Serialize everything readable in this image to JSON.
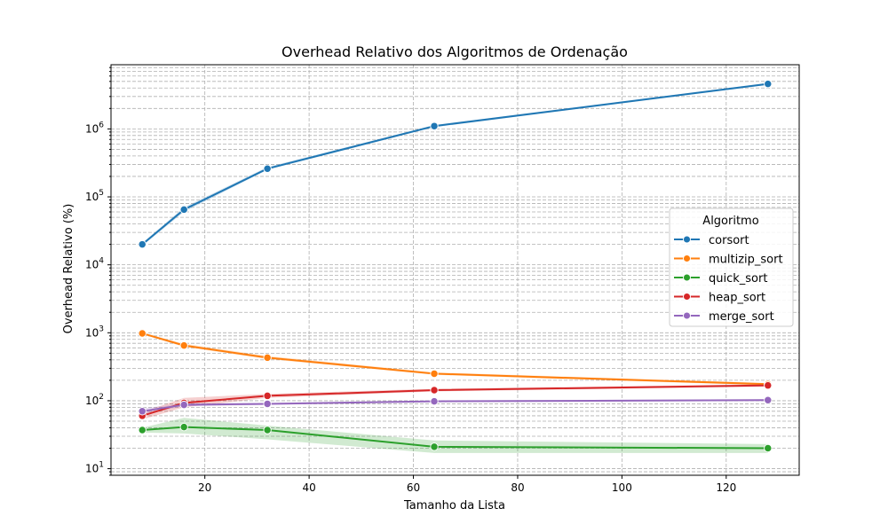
{
  "chart_data": {
    "type": "line",
    "title": "Overhead Relativo dos Algoritmos de Ordenação",
    "xlabel": "Tamanho da Lista",
    "ylabel": "Overhead Relativo (%)",
    "x": [
      8,
      16,
      32,
      64,
      128
    ],
    "xlim": [
      2,
      134
    ],
    "ylim": [
      8,
      8800000
    ],
    "yscale": "log",
    "grid": true,
    "x_ticks": [
      20,
      40,
      60,
      80,
      100,
      120
    ],
    "y_ticks": [
      {
        "base": "10",
        "exp": "1",
        "value": 10
      },
      {
        "base": "10",
        "exp": "2",
        "value": 100
      },
      {
        "base": "10",
        "exp": "3",
        "value": 1000
      },
      {
        "base": "10",
        "exp": "4",
        "value": 10000
      },
      {
        "base": "10",
        "exp": "5",
        "value": 100000
      },
      {
        "base": "10",
        "exp": "6",
        "value": 1000000
      }
    ],
    "legend": {
      "title": "Algoritmo",
      "position": "center-right"
    },
    "series": [
      {
        "name": "corsort",
        "color": "#1f77b4",
        "values": [
          20000,
          65000,
          260000,
          1100000,
          4600000
        ],
        "band": [
          [
            19000,
            21000
          ],
          [
            60000,
            70000
          ],
          [
            250000,
            275000
          ],
          [
            1060000,
            1140000
          ],
          [
            4450000,
            4750000
          ]
        ]
      },
      {
        "name": "multizip_sort",
        "color": "#ff7f0e",
        "values": [
          980,
          650,
          430,
          250,
          175
        ],
        "band": [
          [
            950,
            1010
          ],
          [
            620,
            690
          ],
          [
            410,
            455
          ],
          [
            240,
            262
          ],
          [
            168,
            182
          ]
        ]
      },
      {
        "name": "quick_sort",
        "color": "#2ca02c",
        "values": [
          37,
          41,
          37,
          21,
          20
        ],
        "band": [
          [
            34,
            40
          ],
          [
            33,
            56
          ],
          [
            27,
            43
          ],
          [
            17,
            26
          ],
          [
            17,
            23
          ]
        ]
      },
      {
        "name": "heap_sort",
        "color": "#d62728",
        "values": [
          60,
          93,
          118,
          143,
          168
        ],
        "band": [
          [
            53,
            68
          ],
          [
            80,
            110
          ],
          [
            110,
            126
          ],
          [
            137,
            150
          ],
          [
            161,
            175
          ]
        ]
      },
      {
        "name": "merge_sort",
        "color": "#9467bd",
        "values": [
          70,
          87,
          90,
          98,
          102
        ],
        "band": [
          [
            63,
            77
          ],
          [
            83,
            92
          ],
          [
            87,
            93
          ],
          [
            95,
            101
          ],
          [
            99,
            105
          ]
        ]
      }
    ]
  }
}
